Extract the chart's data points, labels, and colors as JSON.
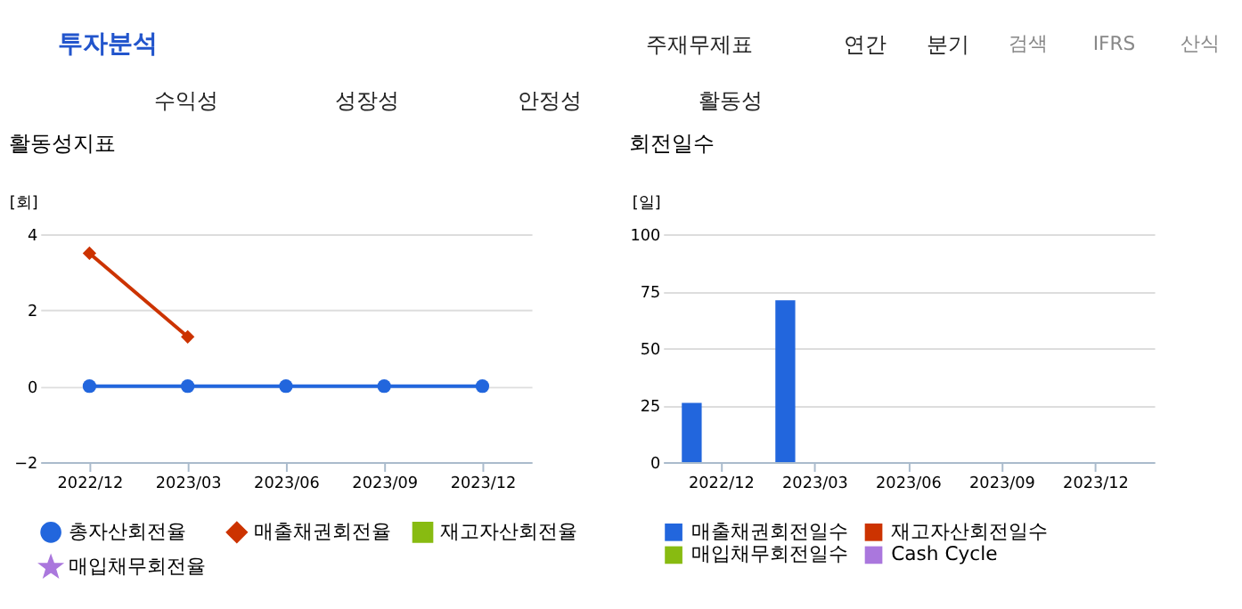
{
  "chart_data": [
    {
      "type": "other",
      "annotations": [
        "투자분석",
        "주재무제표",
        "연간",
        "분기",
        "검색",
        "IFRS",
        "산식",
        "수익성",
        "성장성",
        "안정성",
        "활동성"
      ]
    },
    {
      "type": "line",
      "title": "활동성지표",
      "ylabel": "[회]",
      "categories": [
        "2022/12",
        "2023/03",
        "2023/06",
        "2023/09",
        "2023/12"
      ],
      "series": [
        {
          "name": "총자산회전율",
          "color": "#2266dd",
          "marker": "circle",
          "values": [
            0,
            0,
            0,
            0,
            0
          ]
        },
        {
          "name": "매출채권회전율",
          "color": "#cc3300",
          "marker": "diamond",
          "values": [
            3.5,
            1.3,
            null,
            null,
            null
          ]
        },
        {
          "name": "재고자산회전율",
          "color": "#88bb11",
          "marker": "square",
          "values": [
            null,
            null,
            null,
            null,
            null
          ]
        },
        {
          "name": "매입채무회전율",
          "color": "#aa77dd",
          "marker": "star",
          "values": [
            null,
            null,
            null,
            null,
            null
          ]
        }
      ],
      "ylim": [
        -2,
        4
      ],
      "yticks": [
        -2,
        0,
        2,
        4
      ],
      "grid": "y",
      "legend": "bottom"
    },
    {
      "type": "bar",
      "title": "회전일수",
      "ylabel": "[일]",
      "categories": [
        "2022/12",
        "2023/03",
        "2023/06",
        "2023/09",
        "2023/12"
      ],
      "series": [
        {
          "name": "매출채권회전일수",
          "color": "#2266dd",
          "values": [
            26,
            71,
            null,
            null,
            null
          ]
        },
        {
          "name": "재고자산회전일수",
          "color": "#cc3300",
          "values": [
            null,
            null,
            null,
            null,
            null
          ]
        },
        {
          "name": "매입채무회전일수",
          "color": "#88bb11",
          "values": [
            null,
            null,
            null,
            null,
            null
          ]
        },
        {
          "name": "Cash Cycle",
          "color": "#aa77dd",
          "values": [
            null,
            null,
            null,
            null,
            null
          ]
        }
      ],
      "ylim": [
        0,
        100
      ],
      "yticks": [
        0,
        25,
        50,
        75,
        100
      ],
      "grid": "y",
      "legend": "bottom"
    }
  ]
}
